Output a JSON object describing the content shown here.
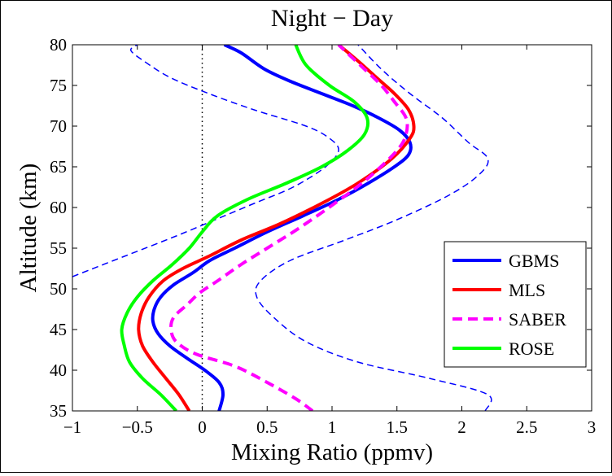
{
  "chart_data": {
    "type": "line",
    "title": "Night − Day",
    "xlabel": "Mixing Ratio (ppmv)",
    "ylabel": "Altitude  (km)",
    "xlim": [
      -1,
      3
    ],
    "ylim": [
      35,
      80
    ],
    "xticks": [
      "−1",
      "−0.5",
      "0",
      "0.5",
      "1",
      "1.5",
      "2",
      "2.5",
      "3"
    ],
    "xtick_values": [
      -1,
      -0.5,
      0,
      0.5,
      1,
      1.5,
      2,
      2.5,
      3
    ],
    "yticks": [
      "35",
      "40",
      "45",
      "50",
      "55",
      "60",
      "65",
      "70",
      "75",
      "80"
    ],
    "ytick_values": [
      35,
      40,
      45,
      50,
      55,
      60,
      65,
      70,
      75,
      80
    ],
    "grid": false,
    "legend_position": "lower-right",
    "zero_reference_line": {
      "x": 0,
      "style": "dotted",
      "color": "#000000"
    },
    "series": [
      {
        "name": "GBMS",
        "color": "#0000ff",
        "style": "solid",
        "width": "thick",
        "points": [
          [
            0.13,
            35
          ],
          [
            0.16,
            37
          ],
          [
            0.13,
            38.5
          ],
          [
            0.02,
            40
          ],
          [
            -0.12,
            41.5
          ],
          [
            -0.25,
            43
          ],
          [
            -0.34,
            44.5
          ],
          [
            -0.38,
            46
          ],
          [
            -0.37,
            47.5
          ],
          [
            -0.32,
            49
          ],
          [
            -0.22,
            50.5
          ],
          [
            -0.07,
            52
          ],
          [
            0.06,
            53.5
          ],
          [
            0.25,
            55
          ],
          [
            0.5,
            57
          ],
          [
            0.78,
            59
          ],
          [
            1.05,
            61
          ],
          [
            1.28,
            63
          ],
          [
            1.48,
            65
          ],
          [
            1.59,
            66.5
          ],
          [
            1.6,
            68
          ],
          [
            1.52,
            69.5
          ],
          [
            1.36,
            71
          ],
          [
            1.16,
            72.5
          ],
          [
            0.92,
            74
          ],
          [
            0.68,
            75.5
          ],
          [
            0.48,
            77
          ],
          [
            0.3,
            79
          ],
          [
            0.17,
            80
          ]
        ]
      },
      {
        "name": "MLS",
        "color": "#ff0000",
        "style": "solid",
        "width": "thick",
        "points": [
          [
            -0.1,
            35
          ],
          [
            -0.18,
            37
          ],
          [
            -0.28,
            39
          ],
          [
            -0.38,
            41
          ],
          [
            -0.46,
            43
          ],
          [
            -0.49,
            45
          ],
          [
            -0.47,
            47
          ],
          [
            -0.41,
            49
          ],
          [
            -0.3,
            51
          ],
          [
            -0.15,
            52.5
          ],
          [
            0.05,
            54
          ],
          [
            0.3,
            56
          ],
          [
            0.6,
            58
          ],
          [
            0.92,
            60.5
          ],
          [
            1.2,
            63
          ],
          [
            1.46,
            66
          ],
          [
            1.6,
            68.5
          ],
          [
            1.63,
            70
          ],
          [
            1.59,
            72
          ],
          [
            1.48,
            74
          ],
          [
            1.34,
            76
          ],
          [
            1.2,
            78
          ],
          [
            1.05,
            80
          ]
        ]
      },
      {
        "name": "SABER",
        "color": "#ff00ff",
        "style": "dashed",
        "width": "thick",
        "points": [
          [
            0.85,
            35
          ],
          [
            0.72,
            36.5
          ],
          [
            0.5,
            38.5
          ],
          [
            0.25,
            40.5
          ],
          [
            -0.05,
            42
          ],
          [
            -0.2,
            43.5
          ],
          [
            -0.24,
            45
          ],
          [
            -0.22,
            46.5
          ],
          [
            -0.12,
            48
          ],
          [
            -0.02,
            49.5
          ],
          [
            0.12,
            51
          ],
          [
            0.3,
            53
          ],
          [
            0.5,
            55
          ],
          [
            0.75,
            57.5
          ],
          [
            1.02,
            60.5
          ],
          [
            1.27,
            63.5
          ],
          [
            1.5,
            67
          ],
          [
            1.57,
            69
          ],
          [
            1.57,
            71
          ],
          [
            1.48,
            73
          ],
          [
            1.38,
            75
          ],
          [
            1.25,
            77
          ],
          [
            1.15,
            78.5
          ],
          [
            1.05,
            80
          ]
        ]
      },
      {
        "name": "ROSE",
        "color": "#00ff00",
        "style": "solid",
        "width": "thick",
        "points": [
          [
            -0.2,
            35
          ],
          [
            -0.32,
            37
          ],
          [
            -0.46,
            39
          ],
          [
            -0.56,
            41
          ],
          [
            -0.6,
            43
          ],
          [
            -0.62,
            45
          ],
          [
            -0.58,
            47
          ],
          [
            -0.5,
            49
          ],
          [
            -0.38,
            51
          ],
          [
            -0.23,
            53
          ],
          [
            -0.1,
            55
          ],
          [
            0.0,
            57
          ],
          [
            0.12,
            59
          ],
          [
            0.35,
            61
          ],
          [
            0.65,
            63
          ],
          [
            0.92,
            65
          ],
          [
            1.12,
            67
          ],
          [
            1.25,
            69
          ],
          [
            1.27,
            71
          ],
          [
            1.17,
            73
          ],
          [
            0.98,
            75
          ],
          [
            0.8,
            77.5
          ],
          [
            0.72,
            80
          ]
        ]
      },
      {
        "name": "",
        "color": "#0000ff",
        "style": "dashed",
        "width": "thin",
        "points": [
          [
            -1.0,
            51.5
          ],
          [
            -0.6,
            54
          ],
          [
            -0.2,
            56.5
          ],
          [
            0.1,
            58.5
          ],
          [
            0.4,
            60.5
          ],
          [
            0.7,
            62.5
          ],
          [
            0.95,
            65
          ],
          [
            1.05,
            67
          ],
          [
            0.98,
            68.5
          ],
          [
            0.8,
            70
          ],
          [
            0.4,
            72
          ],
          [
            0.05,
            74
          ],
          [
            -0.25,
            76
          ],
          [
            -0.45,
            78
          ],
          [
            -0.55,
            79.3
          ],
          [
            -0.5,
            80
          ]
        ]
      },
      {
        "name": "",
        "color": "#0000ff",
        "style": "dashed",
        "width": "thin",
        "points": [
          [
            2.18,
            35
          ],
          [
            2.2,
            37
          ],
          [
            1.75,
            39
          ],
          [
            1.2,
            41
          ],
          [
            0.8,
            43.5
          ],
          [
            0.55,
            46.5
          ],
          [
            0.42,
            49
          ],
          [
            0.45,
            51
          ],
          [
            0.68,
            53.5
          ],
          [
            1.1,
            56
          ],
          [
            1.5,
            58.5
          ],
          [
            1.9,
            61.5
          ],
          [
            2.13,
            64
          ],
          [
            2.2,
            66
          ],
          [
            2.05,
            68
          ],
          [
            1.85,
            71
          ],
          [
            1.6,
            74
          ],
          [
            1.38,
            77
          ],
          [
            1.2,
            80
          ]
        ]
      }
    ]
  }
}
